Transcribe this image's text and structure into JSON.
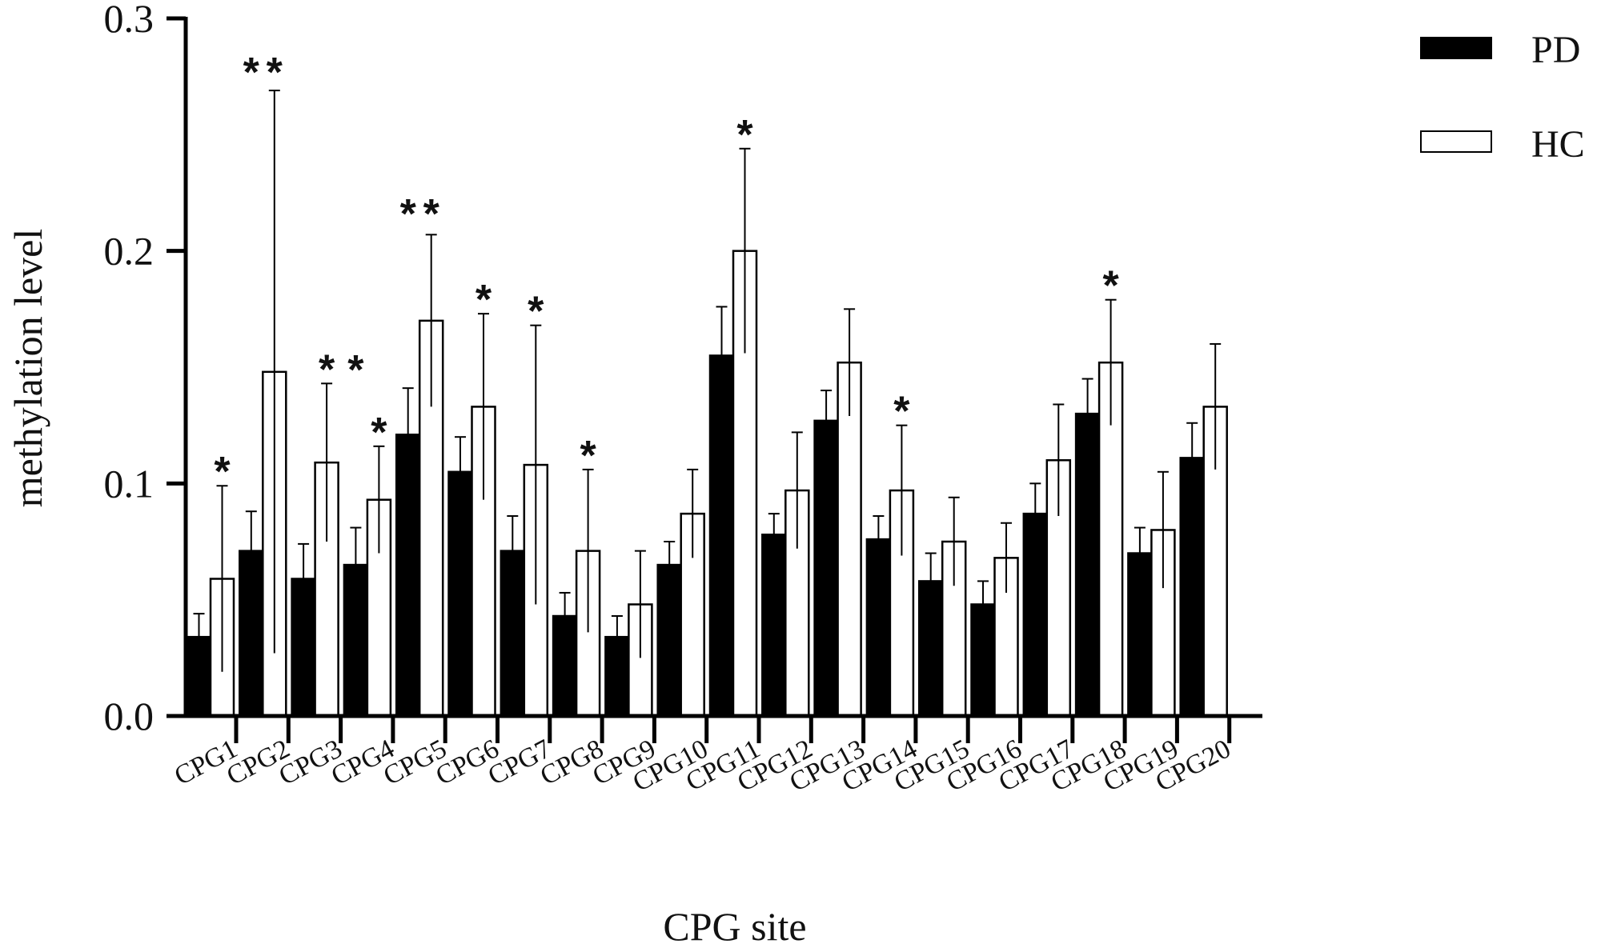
{
  "chart_data": {
    "type": "bar",
    "xlabel": "CPG site",
    "ylabel": "methylation level",
    "ylim": [
      0,
      0.3
    ],
    "yticks": [
      "0.0",
      "0.1",
      "0.2",
      "0.3"
    ],
    "ytick_values": [
      0,
      0.1,
      0.2,
      0.3
    ],
    "grid": false,
    "legend_position": "top-right",
    "categories": [
      "CPG1",
      "CPG2",
      "CPG3",
      "CPG4",
      "CPG5",
      "CPG6",
      "CPG7",
      "CPG8",
      "CPG9",
      "CPG10",
      "CPG11",
      "CPG12",
      "CPG13",
      "CPG14",
      "CPG15",
      "CPG16",
      "CPG17",
      "CPG18",
      "CPG19",
      "CPG20"
    ],
    "series": [
      {
        "name": "PD",
        "color": "#000000",
        "values": [
          0.034,
          0.071,
          0.059,
          0.065,
          0.121,
          0.105,
          0.071,
          0.043,
          0.034,
          0.065,
          0.155,
          0.078,
          0.127,
          0.076,
          0.058,
          0.048,
          0.087,
          0.13,
          0.07,
          0.111
        ],
        "errors": [
          0.01,
          0.017,
          0.015,
          0.016,
          0.02,
          0.015,
          0.015,
          0.01,
          0.009,
          0.01,
          0.021,
          0.009,
          0.013,
          0.01,
          0.012,
          0.01,
          0.013,
          0.015,
          0.011,
          0.015
        ]
      },
      {
        "name": "HC",
        "color": "#ffffff",
        "values": [
          0.059,
          0.148,
          0.109,
          0.093,
          0.17,
          0.133,
          0.108,
          0.071,
          0.048,
          0.087,
          0.2,
          0.097,
          0.152,
          0.097,
          0.075,
          0.068,
          0.11,
          0.152,
          0.08,
          0.133
        ],
        "errors": [
          0.04,
          0.121,
          0.034,
          0.023,
          0.037,
          0.04,
          0.06,
          0.035,
          0.023,
          0.019,
          0.044,
          0.025,
          0.023,
          0.028,
          0.019,
          0.015,
          0.024,
          0.027,
          0.025,
          0.027
        ]
      }
    ],
    "annotations": [
      {
        "category": "CPG1",
        "series": "HC",
        "text": "*"
      },
      {
        "category": "CPG2",
        "series": "PD",
        "text": "*"
      },
      {
        "category": "CPG2",
        "series": "HC",
        "text": "*"
      },
      {
        "category": "CPG3",
        "series": "HC",
        "text": "*"
      },
      {
        "category": "CPG4",
        "series": "PD",
        "text": "*"
      },
      {
        "category": "CPG4",
        "series": "HC",
        "text": "*"
      },
      {
        "category": "CPG5",
        "series": "PD",
        "text": "*"
      },
      {
        "category": "CPG5",
        "series": "HC",
        "text": "*"
      },
      {
        "category": "CPG6",
        "series": "HC",
        "text": "*"
      },
      {
        "category": "CPG7",
        "series": "HC",
        "text": "*"
      },
      {
        "category": "CPG8",
        "series": "HC",
        "text": "*"
      },
      {
        "category": "CPG11",
        "series": "HC",
        "text": "*"
      },
      {
        "category": "CPG14",
        "series": "HC",
        "text": "*"
      },
      {
        "category": "CPG18",
        "series": "HC",
        "text": "*"
      }
    ]
  }
}
